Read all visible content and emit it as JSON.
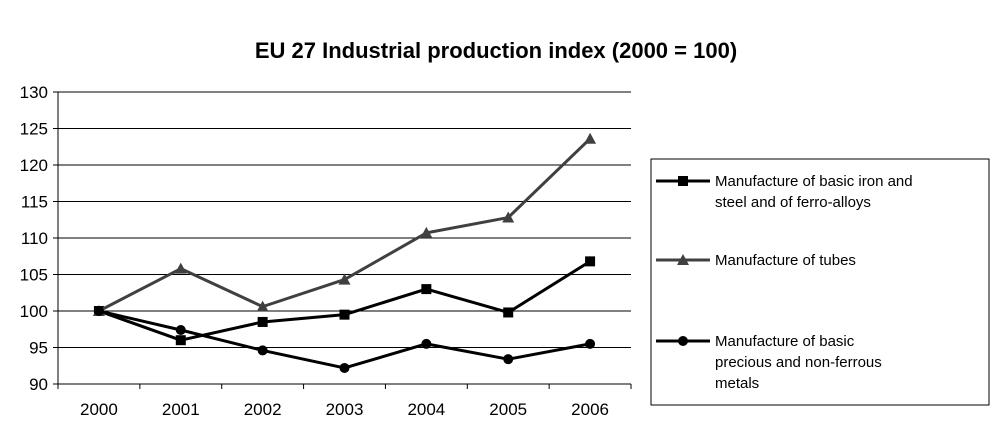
{
  "chart_data": {
    "type": "line",
    "title": "EU 27 Industrial production index (2000 = 100)",
    "xlabel": "",
    "ylabel": "",
    "categories": [
      "2000",
      "2001",
      "2002",
      "2003",
      "2004",
      "2005",
      "2006"
    ],
    "ylim": [
      90,
      130
    ],
    "yticks": [
      90,
      95,
      100,
      105,
      110,
      115,
      120,
      125,
      130
    ],
    "grid": true,
    "legend_position": "right",
    "series": [
      {
        "name": "Manufacture of basic iron and steel and of ferro-alloys",
        "legend_lines": [
          "Manufacture of basic iron and",
          "steel and of ferro-alloys"
        ],
        "marker": "square",
        "color": "#000000",
        "values": [
          100,
          96,
          98.5,
          99.5,
          103,
          99.8,
          106.8
        ]
      },
      {
        "name": "Manufacture of tubes",
        "legend_lines": [
          "Manufacture of tubes"
        ],
        "marker": "triangle",
        "color": "#404040",
        "values": [
          100,
          105.8,
          100.6,
          104.3,
          110.7,
          112.8,
          123.6
        ]
      },
      {
        "name": "Manufacture of basic precious and non-ferrous metals",
        "legend_lines": [
          "Manufacture of basic",
          "precious and non-ferrous",
          "metals"
        ],
        "marker": "circle",
        "color": "#000000",
        "values": [
          100,
          97.4,
          94.6,
          92.2,
          95.5,
          93.4,
          95.5
        ]
      }
    ]
  }
}
